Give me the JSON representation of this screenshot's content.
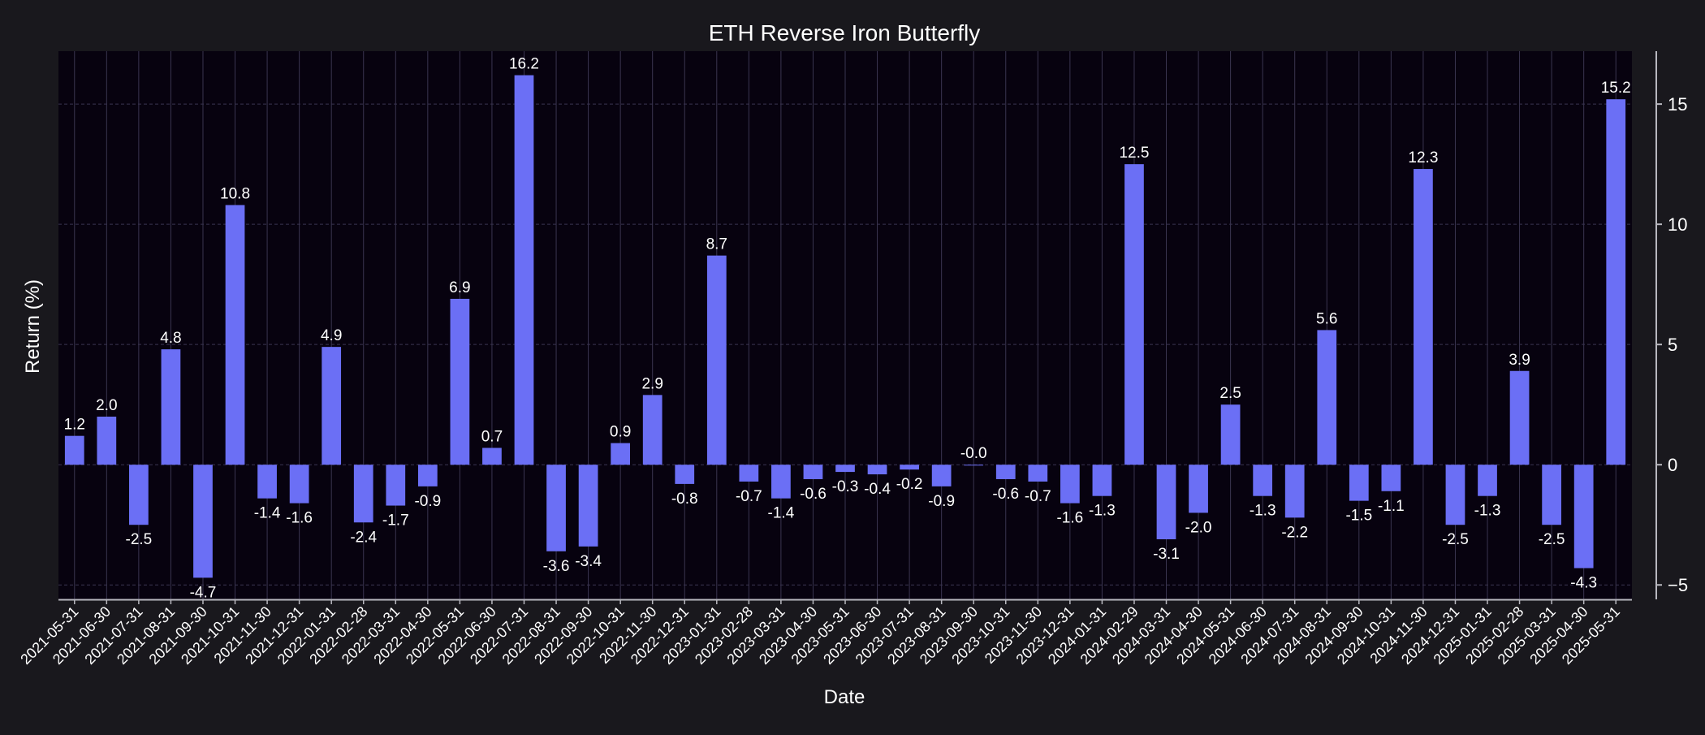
{
  "chart_data": {
    "type": "bar",
    "title": "ETH Reverse Iron Butterfly",
    "xlabel": "Date",
    "ylabel": "Return (%)",
    "ylim": [
      -5.6,
      17.2
    ],
    "yticks": [
      -5,
      0,
      5,
      10,
      15
    ],
    "y_axis_position": "right",
    "grid": true,
    "legend": "none",
    "colors": {
      "background": "#19181d",
      "plot_background": "#07020f",
      "bar": "#6b6ff5",
      "text": "#ffffff",
      "grid": "#3a3550",
      "axis": "#b8b8bf"
    },
    "categories": [
      "2021-05-31",
      "2021-06-30",
      "2021-07-31",
      "2021-08-31",
      "2021-09-30",
      "2021-10-31",
      "2021-11-30",
      "2021-12-31",
      "2022-01-31",
      "2022-02-28",
      "2022-03-31",
      "2022-04-30",
      "2022-05-31",
      "2022-06-30",
      "2022-07-31",
      "2022-08-31",
      "2022-09-30",
      "2022-10-31",
      "2022-11-30",
      "2022-12-31",
      "2023-01-31",
      "2023-02-28",
      "2023-03-31",
      "2023-04-30",
      "2023-05-31",
      "2023-06-30",
      "2023-07-31",
      "2023-08-31",
      "2023-09-30",
      "2023-10-31",
      "2023-11-30",
      "2023-12-31",
      "2024-01-31",
      "2024-02-29",
      "2024-03-31",
      "2024-04-30",
      "2024-05-31",
      "2024-06-30",
      "2024-07-31",
      "2024-08-31",
      "2024-09-30",
      "2024-10-31",
      "2024-11-30",
      "2024-12-31",
      "2025-01-31",
      "2025-02-28",
      "2025-03-31",
      "2025-04-30",
      "2025-05-31"
    ],
    "values": [
      1.2,
      2.0,
      -2.5,
      4.8,
      -4.7,
      10.8,
      -1.4,
      -1.6,
      4.9,
      -2.4,
      -1.7,
      -0.9,
      6.9,
      0.7,
      16.2,
      -3.6,
      -3.4,
      0.9,
      2.9,
      -0.8,
      8.7,
      -0.7,
      -1.4,
      -0.6,
      -0.3,
      -0.4,
      -0.2,
      -0.9,
      -0.0,
      -0.6,
      -0.7,
      -1.6,
      -1.3,
      12.5,
      -3.1,
      -2.0,
      2.5,
      -1.3,
      -2.2,
      5.6,
      -1.5,
      -1.1,
      12.3,
      -2.5,
      -1.3,
      3.9,
      -2.5,
      -4.3,
      15.2
    ],
    "data_labels": [
      "1.2",
      "2.0",
      "-2.5",
      "4.8",
      "-4.7",
      "10.8",
      "-1.4",
      "-1.6",
      "4.9",
      "-2.4",
      "-1.7",
      "-0.9",
      "6.9",
      "0.7",
      "16.2",
      "-3.6",
      "-3.4",
      "0.9",
      "2.9",
      "-0.8",
      "8.7",
      "-0.7",
      "-1.4",
      "-0.6",
      "-0.3",
      "-0.4",
      "-0.2",
      "-0.9",
      "-0.0",
      "-0.6",
      "-0.7",
      "-1.6",
      "-1.3",
      "12.5",
      "-3.1",
      "-2.0",
      "2.5",
      "-1.3",
      "-2.2",
      "5.6",
      "-1.5",
      "-1.1",
      "12.3",
      "-2.5",
      "-1.3",
      "3.9",
      "-2.5",
      "-4.3",
      "15.2"
    ]
  }
}
